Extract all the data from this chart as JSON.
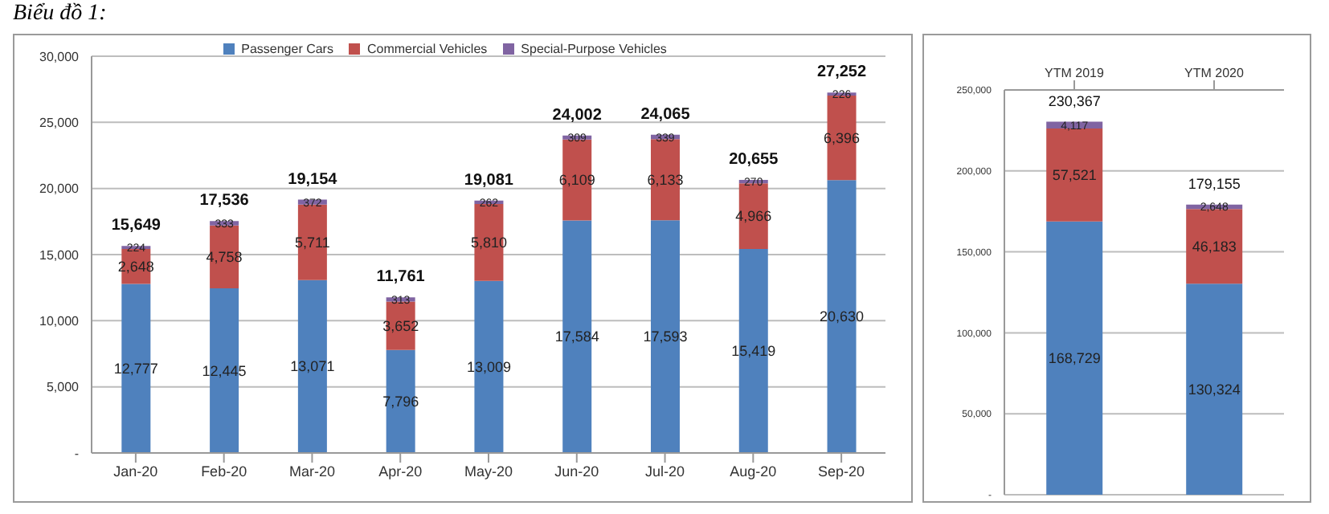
{
  "chart_data": [
    {
      "type": "bar",
      "title": "Biểu đồ 1:",
      "stacked": true,
      "legend": "top",
      "grid": "y",
      "categories": [
        "Jan-20",
        "Feb-20",
        "Mar-20",
        "Apr-20",
        "May-20",
        "Jun-20",
        "Jul-20",
        "Aug-20",
        "Sep-20"
      ],
      "series": [
        {
          "name": "Passenger Cars",
          "color": "#4f81bd",
          "values": [
            12777,
            12445,
            13071,
            7796,
            13009,
            17584,
            17593,
            15419,
            20630
          ],
          "value_labels": [
            "12,777",
            "12,445",
            "13,071",
            "7,796",
            "13,009",
            "17,584",
            "17,593",
            "15,419",
            "20,630"
          ]
        },
        {
          "name": "Commercial Vehicles",
          "color": "#c0504d",
          "values": [
            2648,
            4758,
            5711,
            3652,
            5810,
            6109,
            6133,
            4966,
            6396
          ],
          "value_labels": [
            "2,648",
            "4,758",
            "5,711",
            "3,652",
            "5,810",
            "6,109",
            "6,133",
            "4,966",
            "6,396"
          ]
        },
        {
          "name": "Special-Purpose Vehicles",
          "color": "#8064a2",
          "values": [
            224,
            333,
            372,
            313,
            262,
            309,
            339,
            270,
            226
          ],
          "value_labels": [
            "224",
            "333",
            "372",
            "313",
            "262",
            "309",
            "339",
            "270",
            "226"
          ]
        }
      ],
      "totals": [
        "15,649",
        "17,536",
        "19,154",
        "11,761",
        "19,081",
        "24,002",
        "24,065",
        "20,655",
        "27,252"
      ],
      "ylim": [
        0,
        30000
      ],
      "yticks": [
        {
          "value": 0,
          "label": "-"
        },
        {
          "value": 5000,
          "label": "5,000"
        },
        {
          "value": 10000,
          "label": "10,000"
        },
        {
          "value": 15000,
          "label": "15,000"
        },
        {
          "value": 20000,
          "label": "20,000"
        },
        {
          "value": 25000,
          "label": "25,000"
        },
        {
          "value": 30000,
          "label": "30,000"
        }
      ]
    },
    {
      "type": "bar",
      "stacked": true,
      "grid": "y",
      "categories": [
        "YTM 2019",
        "YTM 2020"
      ],
      "series": [
        {
          "color": "#4f81bd",
          "values": [
            168729,
            130324
          ],
          "value_labels": [
            "168,729",
            "130,324"
          ]
        },
        {
          "color": "#c0504d",
          "values": [
            57521,
            46183
          ],
          "value_labels": [
            "57,521",
            "46,183"
          ]
        },
        {
          "color": "#8064a2",
          "values": [
            4117,
            2648
          ],
          "value_labels": [
            "4,117",
            "2,648"
          ]
        }
      ],
      "totals": [
        "230,367",
        "179,155"
      ],
      "ylim": [
        0,
        250000
      ],
      "yticks": [
        {
          "value": 0,
          "label": "-"
        },
        {
          "value": 50000,
          "label": "50,000"
        },
        {
          "value": 100000,
          "label": "100,000"
        },
        {
          "value": 150000,
          "label": "150,000"
        },
        {
          "value": 200000,
          "label": "200,000"
        },
        {
          "value": 250000,
          "label": "250,000"
        }
      ]
    }
  ]
}
